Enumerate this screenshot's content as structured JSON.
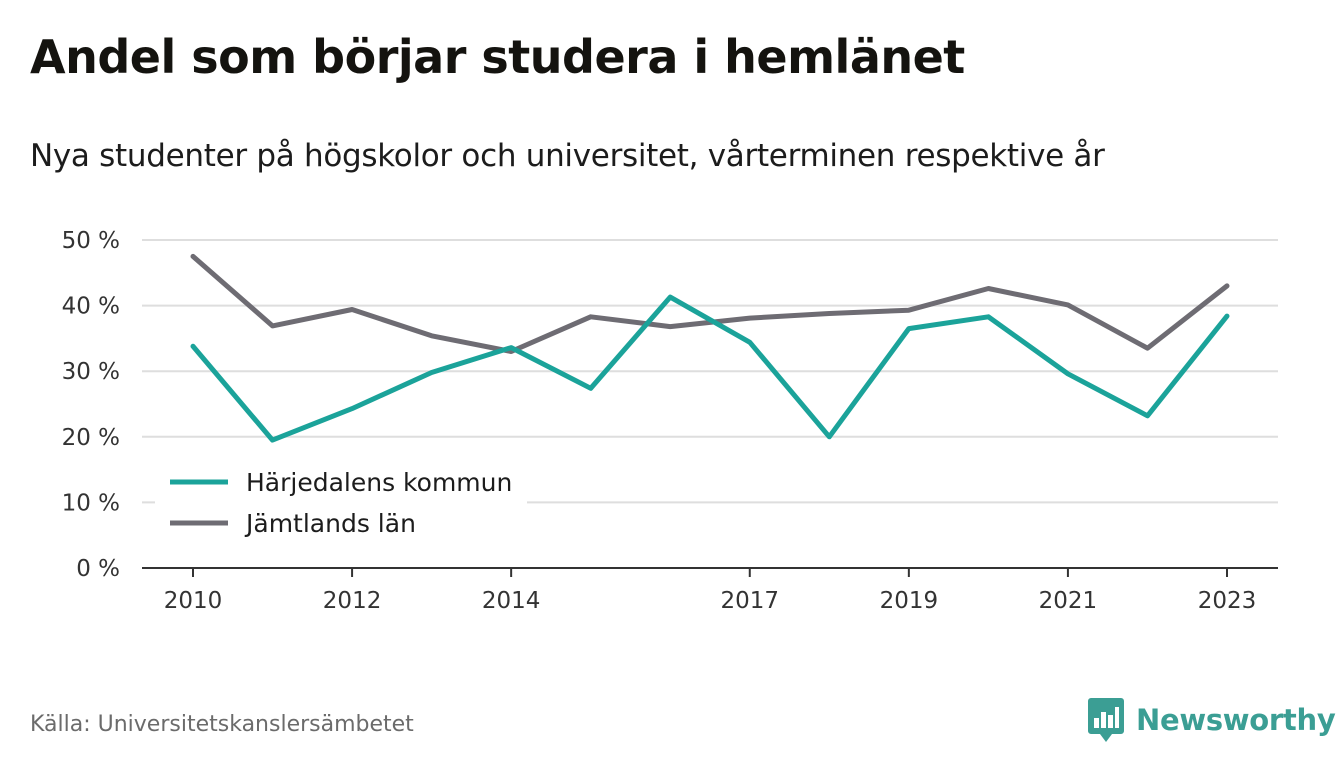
{
  "title": "Andel som börjar studera i hemlänet",
  "subtitle": "Nya studenter på högskolor och universitet, vårterminen respektive år",
  "source": "Källa: Universitetskanslersämbetet",
  "brand": {
    "name": "Newsworthy",
    "icon": "newsworthy-logo-icon",
    "color": "#3b9e94"
  },
  "chart_data": {
    "type": "line",
    "x": [
      2010,
      2011,
      2012,
      2013,
      2014,
      2015,
      2016,
      2017,
      2018,
      2019,
      2020,
      2021,
      2022,
      2023
    ],
    "x_tick_labels": [
      "2010",
      "2012",
      "2014",
      "2017",
      "2019",
      "2021",
      "2023"
    ],
    "y_tick_labels": [
      "0 %",
      "10 %",
      "20 %",
      "30 %",
      "40 %",
      "50 %"
    ],
    "ylim": [
      0,
      50
    ],
    "y_unit": "%",
    "grid": true,
    "legend_position": "bottom-left",
    "series": [
      {
        "name": "Härjedalens kommun",
        "color": "#1ba39a",
        "values": [
          33.8,
          19.5,
          24.3,
          29.8,
          33.6,
          27.4,
          41.3,
          34.4,
          20.0,
          36.5,
          38.3,
          29.6,
          23.2,
          38.4
        ]
      },
      {
        "name": "Jämtlands län",
        "color": "#6e6c73",
        "values": [
          47.5,
          36.9,
          39.4,
          35.4,
          33.0,
          38.3,
          36.8,
          38.1,
          38.8,
          39.3,
          42.6,
          40.1,
          33.5,
          43.0
        ]
      }
    ]
  }
}
